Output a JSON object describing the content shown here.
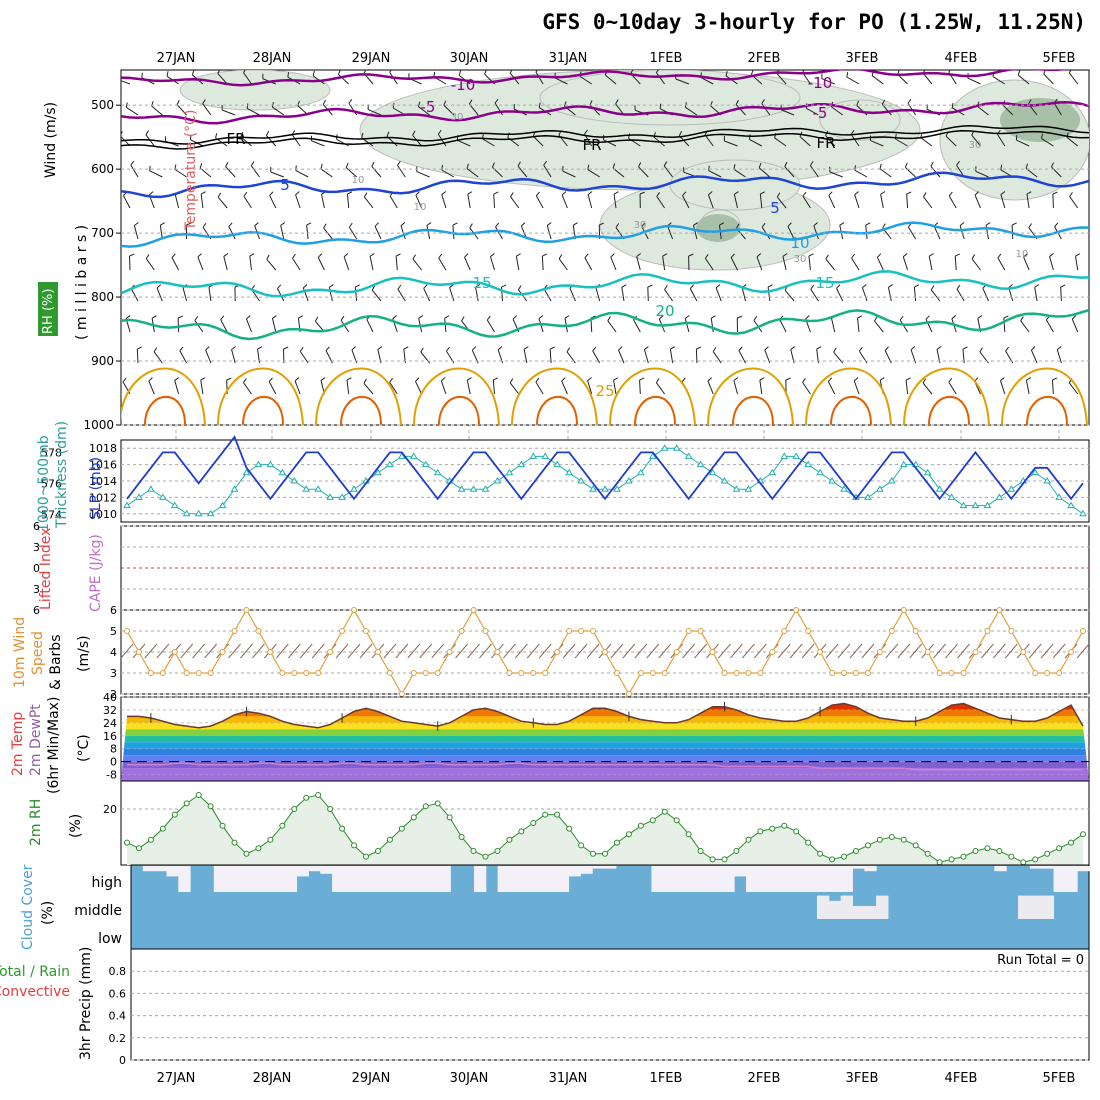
{
  "title": "GFS 0~10day 3-hourly for PO (1.25W, 11.25N)",
  "dates": [
    "27JAN",
    "28JAN",
    "29JAN",
    "30JAN",
    "31JAN",
    "1FEB",
    "2FEB",
    "3FEB",
    "4FEB",
    "5FEB"
  ],
  "colors": {
    "wind10": "#8b008b",
    "wind5": "#8b008b",
    "frz": "#000000",
    "t5": "#1e44d6",
    "t10": "#1e9fe6",
    "t15": "#18c0c0",
    "t20": "#14b086",
    "warm": "#e0a000",
    "hot": "#e06000",
    "rh": "#c8dcc8",
    "thickness": "#1e3cd0",
    "slp": "#20b0b0",
    "lifted": "#e04040",
    "wind_speed": "#e0a040",
    "temp": "#6b3a2a",
    "dewpt": "#9060a0",
    "cloud": "#6aaed6",
    "rh2m": "#2a8c2a",
    "rh2m_fill": "#e6f0e6"
  },
  "panels": {
    "upper": {
      "ylabel_rh": "RH (%)",
      "ylabel_temp": "Temperature (°C)",
      "ylabel_wind": "Wind (m/s)",
      "ylabel_mb": "( m i l l i b a r s )",
      "ticks": [
        "500",
        "600",
        "700",
        "800",
        "900",
        "1000"
      ],
      "contour_labels": {
        "c10a": "-10",
        "c10b": "-10",
        "c5a": "-5",
        "c5b": "-5",
        "fr1": "FR",
        "fr2": "FR",
        "fr3": "FR",
        "t5a": "5",
        "t5b": "5",
        "t10": "10",
        "t15a": "15",
        "t15b": "15",
        "t20": "20",
        "t25": "25",
        "rh30a": "30",
        "rh30b": "30",
        "rh30c": "30",
        "rh30d": "30",
        "rh30e": "30",
        "rh10a": "10",
        "rh10b": "10",
        "rh10c": "10"
      }
    },
    "thickness": {
      "ylabel_left": "1000~500mb",
      "ylabel_left2": "Thickness (dm)",
      "ylabel_right": "SLP (mb)",
      "left_ticks": [
        "578",
        "576",
        "574"
      ],
      "right_ticks": [
        "1018",
        "1016",
        "1014",
        "1012",
        "1010"
      ]
    },
    "cape": {
      "ylabel_left": "Lifted Index",
      "ylabel_right": "CAPE (J/kg)",
      "ticks": [
        "6",
        "3",
        "0",
        "3",
        "6"
      ]
    },
    "wind10m": {
      "ylabel1": "10m Wind",
      "ylabel2": "Speed",
      "ylabel3": "& Barbs",
      "ylabel_unit": "(m/s)",
      "ticks": [
        "6",
        "5",
        "4",
        "3",
        "2"
      ]
    },
    "temp2m": {
      "ylabel1": "2m Temp",
      "ylabel2": "2m DewPt",
      "ylabel3": "(6hr Min/Max)",
      "ylabel_unit": "(°C)",
      "ticks": [
        "40",
        "32",
        "24",
        "16",
        "8",
        "0",
        "-8"
      ]
    },
    "rh2m": {
      "ylabel1": "2m RH",
      "ylabel_unit": "(%)",
      "ticks": [
        "20"
      ]
    },
    "cloud": {
      "ylabel1": "Cloud Cover",
      "ylabel_unit": "(%)",
      "levels": [
        "high",
        "middle",
        "low"
      ]
    },
    "precip": {
      "ylabel1": "Total / Rain",
      "ylabel2": "Convective",
      "ylabel3": "3hr Precip (mm)",
      "ticks": [
        "0.8",
        "0.6",
        "0.4",
        "0.2",
        "0"
      ],
      "run_total": "Run Total = 0"
    }
  },
  "chart_data": {
    "type": "line",
    "x_unit": "3-hourly steps (81)",
    "series": [
      {
        "name": "1000~500mb Thickness (dm)",
        "values": [
          575,
          576,
          577,
          578,
          578,
          577,
          576,
          577,
          578,
          579,
          577,
          576,
          575,
          576,
          577,
          578,
          578,
          577,
          576,
          575,
          576,
          577,
          578,
          578,
          577,
          576,
          575,
          576,
          577,
          578,
          578,
          577,
          576,
          575,
          576,
          577,
          578,
          578,
          577,
          576,
          575,
          576,
          577,
          578,
          578,
          577,
          576,
          575,
          576,
          577,
          578,
          578,
          577,
          576,
          575,
          576,
          577,
          578,
          578,
          577,
          576,
          575,
          576,
          577,
          578,
          578,
          577,
          576,
          575,
          576,
          577,
          578,
          577,
          576,
          575,
          576,
          577,
          577,
          576,
          575,
          576
        ]
      },
      {
        "name": "SLP (mb)",
        "values": [
          1011,
          1012,
          1013,
          1012,
          1011,
          1010,
          1010,
          1010,
          1011,
          1013,
          1015,
          1016,
          1016,
          1015,
          1014,
          1013,
          1013,
          1012,
          1012,
          1013,
          1014,
          1015,
          1016,
          1017,
          1017,
          1016,
          1015,
          1014,
          1013,
          1013,
          1013,
          1014,
          1015,
          1016,
          1017,
          1017,
          1016,
          1015,
          1014,
          1013,
          1013,
          1013,
          1014,
          1015,
          1017,
          1018,
          1018,
          1017,
          1016,
          1015,
          1014,
          1013,
          1013,
          1014,
          1015,
          1017,
          1017,
          1016,
          1015,
          1014,
          1013,
          1012,
          1012,
          1013,
          1014,
          1016,
          1016,
          1015,
          1013,
          1012,
          1011,
          1011,
          1011,
          1012,
          1013,
          1014,
          1015,
          1014,
          1012,
          1011,
          1010
        ]
      },
      {
        "name": "10m Wind Speed (m/s)",
        "values": [
          5,
          4,
          3,
          3,
          4,
          3,
          3,
          3,
          4,
          5,
          6,
          5,
          4,
          3,
          3,
          3,
          3,
          4,
          5,
          6,
          5,
          4,
          3,
          2,
          3,
          3,
          3,
          4,
          5,
          6,
          5,
          4,
          3,
          3,
          3,
          3,
          4,
          5,
          5,
          5,
          4,
          3,
          2,
          3,
          3,
          3,
          4,
          5,
          5,
          4,
          3,
          3,
          3,
          3,
          4,
          5,
          6,
          5,
          4,
          3,
          3,
          3,
          3,
          4,
          5,
          6,
          5,
          4,
          3,
          3,
          3,
          4,
          5,
          6,
          5,
          4,
          3,
          3,
          3,
          4,
          5
        ]
      },
      {
        "name": "2m Temp (°C)",
        "values": [
          28,
          28,
          27,
          25,
          23,
          22,
          21,
          22,
          25,
          29,
          31,
          30,
          28,
          25,
          23,
          22,
          21,
          23,
          27,
          31,
          33,
          31,
          28,
          25,
          24,
          23,
          22,
          24,
          28,
          32,
          33,
          31,
          28,
          25,
          24,
          23,
          23,
          25,
          29,
          33,
          33,
          31,
          28,
          26,
          25,
          24,
          24,
          26,
          30,
          34,
          34,
          32,
          29,
          27,
          26,
          25,
          25,
          27,
          31,
          35,
          36,
          34,
          30,
          27,
          26,
          25,
          25,
          27,
          31,
          35,
          36,
          33,
          30,
          27,
          26,
          25,
          25,
          27,
          31,
          35,
          22
        ]
      },
      {
        "name": "2m DewPt (°C)",
        "values": [
          -2,
          -2,
          -2,
          -2,
          -1,
          -1,
          -2,
          -2,
          -2,
          -2,
          -2,
          -1,
          -1,
          -2,
          -2,
          -2,
          -2,
          -2,
          -1,
          -1,
          -2,
          -2,
          -2,
          -2,
          -2,
          -1,
          -1,
          -2,
          -2,
          -2,
          -2,
          -2,
          -1,
          -1,
          -2,
          -2,
          -2,
          -2,
          -2,
          -2,
          -2,
          -2,
          -2,
          -2,
          -2,
          -2,
          -2,
          -2,
          -2,
          -2,
          -3,
          -3,
          -3,
          -3,
          -3,
          -3,
          -3,
          -3,
          -4,
          -4,
          -4,
          -4,
          -4,
          -4,
          -4,
          -4,
          -5,
          -5,
          -5,
          -5,
          -5,
          -5,
          -5,
          -5,
          -5,
          -5,
          -5,
          -5,
          -5,
          -5,
          -5
        ]
      },
      {
        "name": "2m RH (%)",
        "values": [
          8,
          6,
          9,
          13,
          18,
          22,
          25,
          21,
          14,
          8,
          4,
          6,
          9,
          14,
          20,
          24,
          25,
          20,
          13,
          7,
          3,
          5,
          9,
          13,
          17,
          21,
          22,
          17,
          10,
          5,
          3,
          5,
          9,
          12,
          15,
          18,
          18,
          13,
          7,
          4,
          4,
          8,
          11,
          14,
          16,
          19,
          16,
          11,
          5,
          2,
          2,
          5,
          9,
          12,
          13,
          14,
          12,
          8,
          4,
          2,
          3,
          5,
          7,
          9,
          10,
          9,
          7,
          4,
          1,
          2,
          3,
          5,
          6,
          5,
          3,
          1,
          2,
          4,
          6,
          8,
          11
        ]
      }
    ],
    "ylim": {
      "thickness": [
        573.5,
        578.8
      ],
      "slp": [
        1009,
        1019
      ],
      "wind10m": [
        2,
        6
      ],
      "temp2m": [
        -12,
        40
      ],
      "rh2m": [
        0,
        30
      ],
      "precip": [
        0,
        1
      ]
    },
    "run_total_precip": 0,
    "cloud_high_presence": [
      1,
      0.8,
      0.8,
      0.6,
      0,
      1,
      1,
      0,
      0,
      0,
      0,
      0,
      0,
      0,
      0.6,
      0.8,
      0.7,
      0,
      0,
      0,
      0,
      0,
      0,
      0,
      0,
      0,
      0,
      1,
      1,
      0,
      1,
      0,
      0,
      0,
      0,
      0,
      0,
      0.6,
      0.7,
      0.9,
      0.9,
      1,
      1,
      1,
      0,
      0,
      0,
      0,
      0,
      0,
      0,
      0.6,
      0,
      0,
      0,
      0,
      0,
      0,
      0,
      0,
      0,
      0.9,
      0.8,
      1,
      1,
      1,
      1,
      1,
      1,
      1,
      1,
      1,
      1,
      0.8,
      1,
      1,
      0.9,
      0.9,
      0,
      0,
      0.8
    ],
    "cloud_mid_presence": [
      0,
      0,
      0,
      0,
      0,
      0,
      0,
      0,
      0,
      0,
      0,
      0,
      0,
      0,
      0,
      0,
      0,
      0,
      0,
      0,
      0,
      0,
      0,
      0,
      0,
      0,
      0,
      0,
      0,
      0,
      0,
      0,
      0,
      0,
      0,
      0,
      0,
      0,
      0,
      0,
      0,
      0,
      0,
      0,
      0,
      0,
      0,
      0,
      0,
      0,
      0,
      0,
      0,
      0,
      0,
      0,
      0,
      0,
      0.9,
      0.7,
      0.9,
      0.5,
      0.5,
      0.9,
      0,
      0,
      0,
      0,
      0,
      0,
      0,
      0,
      0,
      0,
      0,
      0.9,
      0.9,
      0.9,
      0,
      0,
      0
    ]
  }
}
